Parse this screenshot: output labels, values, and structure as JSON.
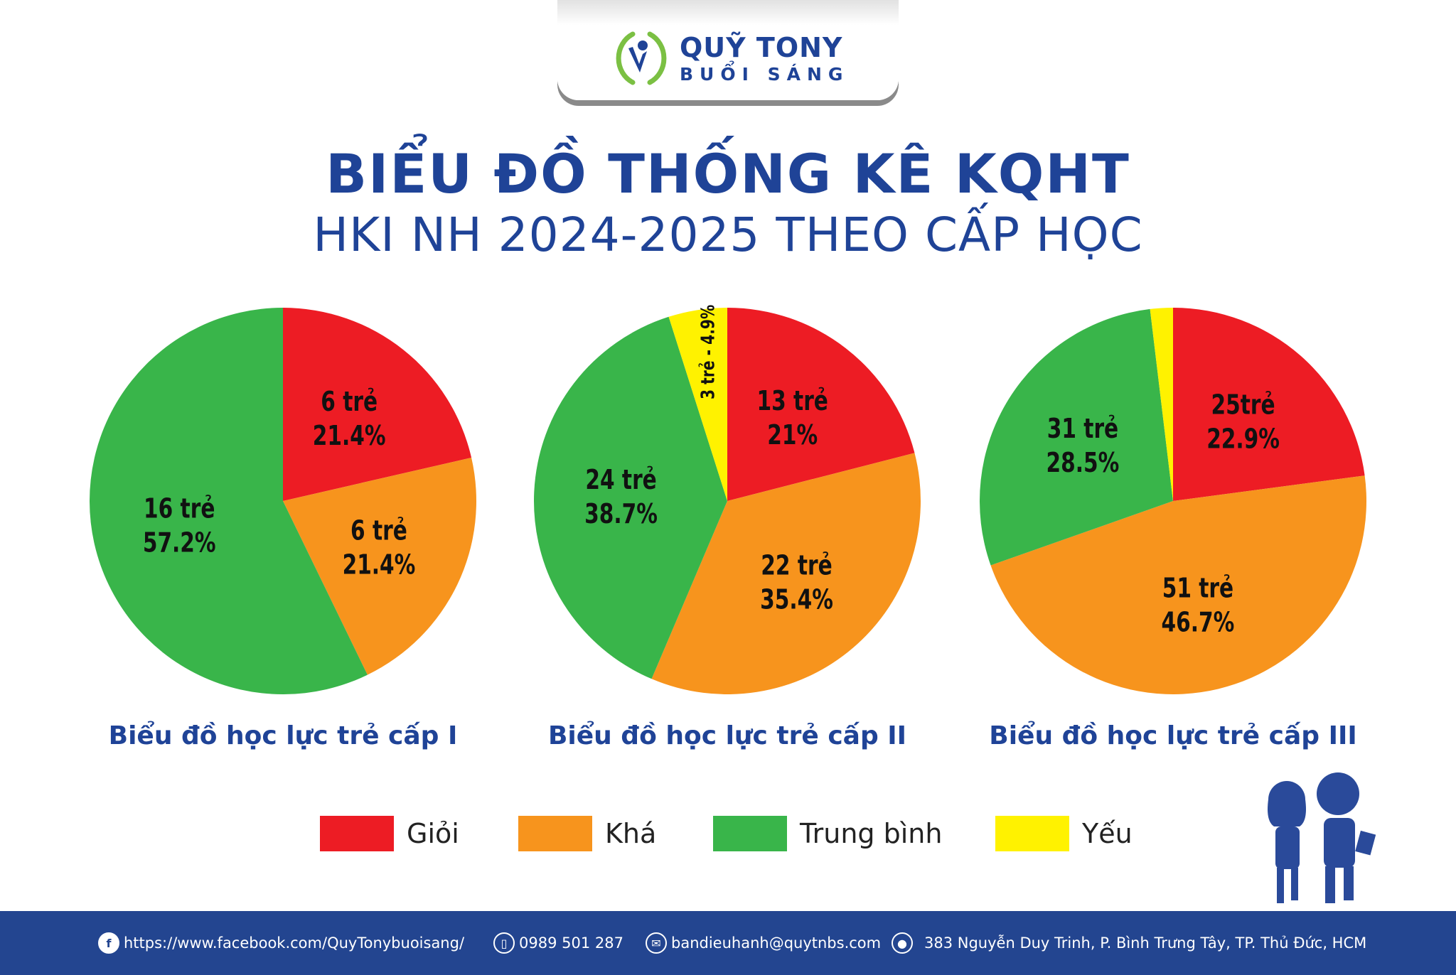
{
  "brand": {
    "line1": "QUỸ TONY",
    "line2": "BUỔI SÁNG"
  },
  "header": {
    "title": "BIỂU ĐỒ THỐNG KÊ KQHT",
    "subtitle": "HKI NH 2024-2025 THEO CẤP HỌC"
  },
  "colors": {
    "gioi": "#ED1C24",
    "kha": "#F7941D",
    "trung_binh": "#39B54A",
    "yeu": "#FFF200",
    "brand": "#1F4397"
  },
  "legend": [
    {
      "label": "Giỏi",
      "color": "#ED1C24"
    },
    {
      "label": "Khá",
      "color": "#F7941D"
    },
    {
      "label": "Trung bình",
      "color": "#39B54A"
    },
    {
      "label": "Yếu",
      "color": "#FFF200"
    }
  ],
  "chart_data": [
    {
      "type": "pie",
      "title": "Biểu đồ học lực trẻ cấp I",
      "slices": [
        {
          "category": "Giỏi",
          "count": 6,
          "percent": 21.4,
          "label": [
            "6 trẻ",
            "21.4%"
          ]
        },
        {
          "category": "Khá",
          "count": 6,
          "percent": 21.4,
          "label": [
            "6 trẻ",
            "21.4%"
          ]
        },
        {
          "category": "Trung bình",
          "count": 16,
          "percent": 57.2,
          "label": [
            "16 trẻ",
            "57.2%"
          ]
        }
      ]
    },
    {
      "type": "pie",
      "title": "Biểu đồ học lực trẻ cấp II",
      "slices": [
        {
          "category": "Giỏi",
          "count": 13,
          "percent": 21,
          "label": [
            "13 trẻ",
            "21%"
          ]
        },
        {
          "category": "Khá",
          "count": 22,
          "percent": 35.4,
          "label": [
            "22 trẻ",
            "35.4%"
          ]
        },
        {
          "category": "Trung bình",
          "count": 24,
          "percent": 38.7,
          "label": [
            "24 trẻ",
            "38.7%"
          ]
        },
        {
          "category": "Yếu",
          "count": 3,
          "percent": 4.9,
          "label": [
            "3 trẻ - 4.9%"
          ],
          "vertical": true
        }
      ]
    },
    {
      "type": "pie",
      "title": "Biểu đồ học lực trẻ cấp III",
      "slices": [
        {
          "category": "Giỏi",
          "count": 25,
          "percent": 22.9,
          "label": [
            "25trẻ",
            "22.9%"
          ]
        },
        {
          "category": "Khá",
          "count": 51,
          "percent": 46.7,
          "label": [
            "51 trẻ",
            "46.7%"
          ]
        },
        {
          "category": "Trung bình",
          "count": 31,
          "percent": 28.5,
          "label": [
            "31 trẻ",
            "28.5%"
          ]
        },
        {
          "category": "Yếu",
          "percent": 1.9,
          "label": []
        }
      ]
    }
  ],
  "footer": {
    "facebook": "https://www.facebook.com/QuyTonybuoisang/",
    "phone": "0989 501 287",
    "email": "bandieuhanh@quytnbs.com",
    "address": "383 Nguyễn Duy Trinh, P. Bình Trưng Tây, TP. Thủ Đức, HCM"
  }
}
